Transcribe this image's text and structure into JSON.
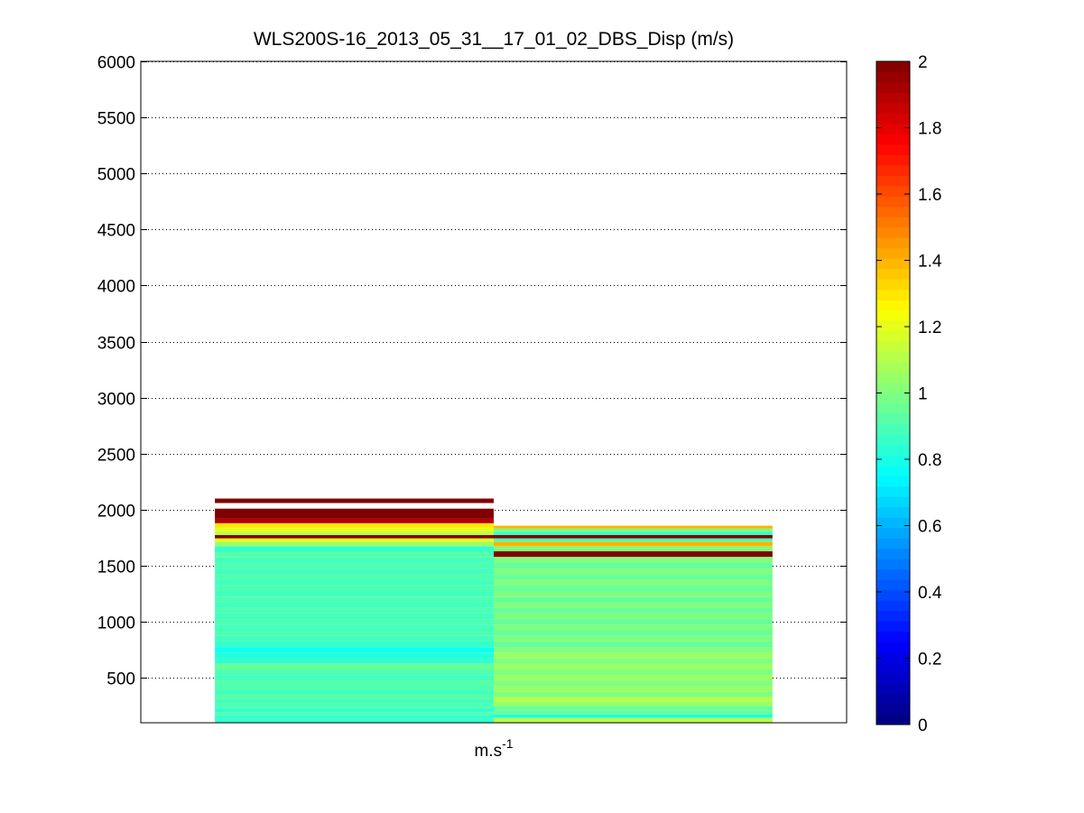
{
  "figure": {
    "background": "#ffffff"
  },
  "chart_data": {
    "type": "heatmap",
    "title": "WLS200S-16_2013_05_31__17_01_02_DBS_Disp (m/s)",
    "xlabel": "m.s",
    "xlabel_superscript": "-1",
    "ylabel": "",
    "ylim": [
      100,
      6000
    ],
    "yticks": [
      500,
      1000,
      1500,
      2000,
      2500,
      3000,
      3500,
      4000,
      4500,
      5000,
      5500,
      6000
    ],
    "grid": true,
    "x_range": [
      0,
      1
    ],
    "columns": [
      {
        "x_range": [
          0.105,
          0.5
        ],
        "y_range": [
          100,
          2100
        ],
        "levels": [
          {
            "y": 120,
            "value": 0.85
          },
          {
            "y": 150,
            "value": 0.85
          },
          {
            "y": 180,
            "value": 0.9
          },
          {
            "y": 210,
            "value": 0.85
          },
          {
            "y": 250,
            "value": 0.9
          },
          {
            "y": 290,
            "value": 0.88
          },
          {
            "y": 330,
            "value": 0.92
          },
          {
            "y": 370,
            "value": 0.88
          },
          {
            "y": 410,
            "value": 0.9
          },
          {
            "y": 450,
            "value": 0.92
          },
          {
            "y": 500,
            "value": 0.88
          },
          {
            "y": 550,
            "value": 0.9
          },
          {
            "y": 600,
            "value": 0.95
          },
          {
            "y": 650,
            "value": 0.85
          },
          {
            "y": 700,
            "value": 0.82
          },
          {
            "y": 750,
            "value": 0.78
          },
          {
            "y": 800,
            "value": 0.85
          },
          {
            "y": 850,
            "value": 0.88
          },
          {
            "y": 900,
            "value": 0.9
          },
          {
            "y": 950,
            "value": 0.88
          },
          {
            "y": 1000,
            "value": 0.9
          },
          {
            "y": 1050,
            "value": 0.88
          },
          {
            "y": 1100,
            "value": 0.9
          },
          {
            "y": 1150,
            "value": 0.88
          },
          {
            "y": 1200,
            "value": 0.9
          },
          {
            "y": 1250,
            "value": 0.88
          },
          {
            "y": 1300,
            "value": 0.9
          },
          {
            "y": 1350,
            "value": 0.88
          },
          {
            "y": 1400,
            "value": 0.9
          },
          {
            "y": 1450,
            "value": 0.88
          },
          {
            "y": 1500,
            "value": 0.9
          },
          {
            "y": 1550,
            "value": 0.88
          },
          {
            "y": 1600,
            "value": 0.92
          },
          {
            "y": 1650,
            "value": 0.85
          },
          {
            "y": 1700,
            "value": 1.05
          },
          {
            "y": 1730,
            "value": 1.2
          },
          {
            "y": 1760,
            "value": 2.0
          },
          {
            "y": 1790,
            "value": 1.1
          },
          {
            "y": 1820,
            "value": 1.2
          },
          {
            "y": 1860,
            "value": 1.3
          },
          {
            "y": 1900,
            "value": 1.9
          },
          {
            "y": 1940,
            "value": 2.0
          },
          {
            "y": 2080,
            "value": 2.0
          }
        ]
      },
      {
        "x_range": [
          0.5,
          0.895
        ],
        "y_range": [
          100,
          1850
        ],
        "levels": [
          {
            "y": 130,
            "value": 1.1
          },
          {
            "y": 160,
            "value": 0.8
          },
          {
            "y": 190,
            "value": 0.95
          },
          {
            "y": 230,
            "value": 0.95
          },
          {
            "y": 270,
            "value": 1.05
          },
          {
            "y": 310,
            "value": 1.1
          },
          {
            "y": 350,
            "value": 1.0
          },
          {
            "y": 400,
            "value": 1.05
          },
          {
            "y": 450,
            "value": 1.0
          },
          {
            "y": 500,
            "value": 1.05
          },
          {
            "y": 550,
            "value": 1.0
          },
          {
            "y": 600,
            "value": 1.05
          },
          {
            "y": 650,
            "value": 1.0
          },
          {
            "y": 700,
            "value": 1.05
          },
          {
            "y": 750,
            "value": 1.0
          },
          {
            "y": 800,
            "value": 0.95
          },
          {
            "y": 850,
            "value": 1.0
          },
          {
            "y": 900,
            "value": 0.95
          },
          {
            "y": 950,
            "value": 1.0
          },
          {
            "y": 1000,
            "value": 0.95
          },
          {
            "y": 1050,
            "value": 1.0
          },
          {
            "y": 1100,
            "value": 0.95
          },
          {
            "y": 1150,
            "value": 1.0
          },
          {
            "y": 1200,
            "value": 0.95
          },
          {
            "y": 1250,
            "value": 1.0
          },
          {
            "y": 1300,
            "value": 0.95
          },
          {
            "y": 1350,
            "value": 1.0
          },
          {
            "y": 1400,
            "value": 0.95
          },
          {
            "y": 1450,
            "value": 1.0
          },
          {
            "y": 1500,
            "value": 0.95
          },
          {
            "y": 1550,
            "value": 1.0
          },
          {
            "y": 1610,
            "value": 2.0
          },
          {
            "y": 1650,
            "value": 1.0
          },
          {
            "y": 1700,
            "value": 1.4
          },
          {
            "y": 1730,
            "value": 0.9
          },
          {
            "y": 1760,
            "value": 2.0
          },
          {
            "y": 1790,
            "value": 0.85
          },
          {
            "y": 1820,
            "value": 1.0
          },
          {
            "y": 1845,
            "value": 1.4
          }
        ]
      }
    ],
    "colorbar": {
      "colormap": "jet",
      "clim": [
        0,
        2
      ],
      "ticks": [
        "0",
        "0.2",
        "0.4",
        "0.6",
        "0.8",
        "1",
        "1.2",
        "1.4",
        "1.6",
        "1.8",
        "2"
      ]
    }
  }
}
